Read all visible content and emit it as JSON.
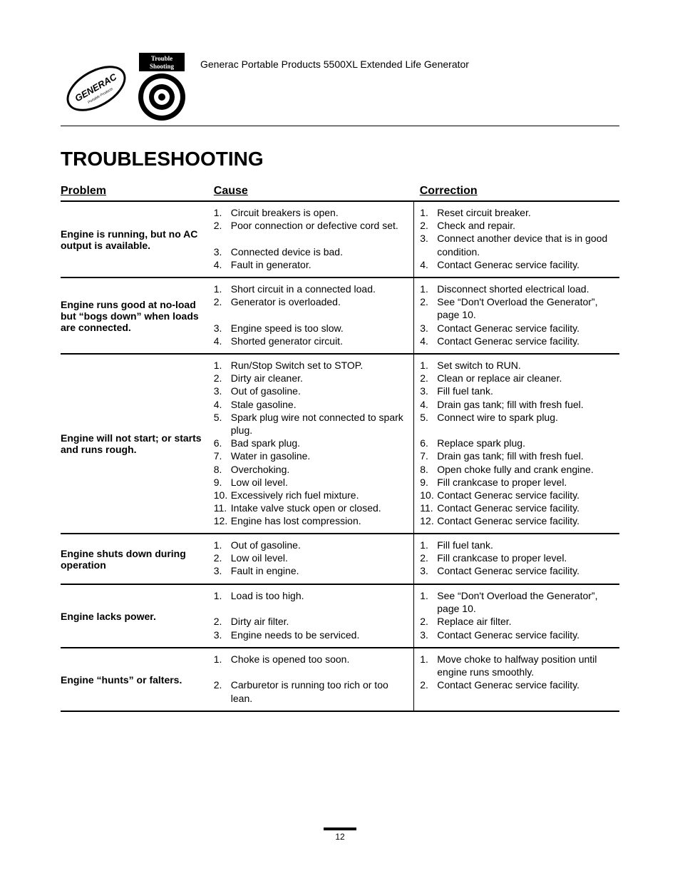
{
  "header": {
    "doc_title": "Generac Portable Products 5500XL Extended Life Generator",
    "badge_line1": "Trouble",
    "badge_line2": "Shooting",
    "logo_text": "GENERAC"
  },
  "section_title": "TROUBLESHOOTING",
  "columns": {
    "problem": "Problem",
    "cause": "Cause",
    "correction": "Correction"
  },
  "rows": [
    {
      "problem": "Engine is running, but no AC output is available.",
      "cause": [
        "Circuit breakers is open.",
        "Poor connection or defective cord set.",
        "Connected device is bad.",
        "Fault in generator."
      ],
      "correction": [
        "Reset circuit breaker.",
        "Check and repair.",
        "Connect another device that is in good condition.",
        "Contact Generac service facility."
      ],
      "spacer_after_cause": [
        1
      ],
      "spacer_after_correction": []
    },
    {
      "problem": "Engine runs good at no-load but “bogs down” when loads are connected.",
      "cause": [
        "Short circuit in a connected load.",
        "Generator is overloaded.",
        "Engine speed is too slow.",
        "Shorted generator circuit."
      ],
      "correction": [
        "Disconnect shorted electrical load.",
        "See “Don't Overload the Generator”, page 10.",
        "Contact Generac service facility.",
        "Contact Generac service facility."
      ],
      "spacer_after_cause": [
        1
      ],
      "spacer_after_correction": []
    },
    {
      "problem": "Engine will not start; or starts and runs rough.",
      "cause": [
        "Run/Stop Switch set to STOP.",
        "Dirty air cleaner.",
        "Out of gasoline.",
        "Stale gasoline.",
        "Spark plug wire not connected to spark plug.",
        "Bad spark plug.",
        "Water in gasoline.",
        "Overchoking.",
        "Low oil level.",
        "Excessively rich fuel mixture.",
        "Intake valve stuck open or closed.",
        "Engine has lost compression."
      ],
      "correction": [
        "Set switch to RUN.",
        "Clean or replace air cleaner.",
        "Fill fuel tank.",
        "Drain gas tank; fill with fresh fuel.",
        "Connect wire to spark plug.",
        "Replace spark plug.",
        "Drain gas tank; fill with fresh fuel.",
        "Open choke fully and crank engine.",
        "Fill crankcase to proper level.",
        "Contact Generac service facility.",
        "Contact Generac service facility.",
        "Contact Generac service facility."
      ],
      "spacer_after_cause": [],
      "spacer_after_correction": [
        4
      ]
    },
    {
      "problem": "Engine shuts down during operation",
      "cause": [
        "Out of gasoline.",
        "Low oil level.",
        "Fault in engine."
      ],
      "correction": [
        "Fill fuel tank.",
        "Fill crankcase to proper level.",
        "Contact Generac service facility."
      ],
      "spacer_after_cause": [],
      "spacer_after_correction": []
    },
    {
      "problem": "Engine lacks power.",
      "cause": [
        "Load is too high.",
        "Dirty air filter.",
        "Engine needs to be serviced."
      ],
      "correction": [
        "See “Don't Overload the Generator”, page 10.",
        "Replace air filter.",
        "Contact Generac service facility."
      ],
      "spacer_after_cause": [
        0
      ],
      "spacer_after_correction": []
    },
    {
      "problem": "Engine “hunts” or falters.",
      "cause": [
        "Choke is opened too soon.",
        "Carburetor is running too rich or too lean."
      ],
      "correction": [
        "Move choke to halfway position until engine runs smoothly.",
        "Contact Generac service facility."
      ],
      "spacer_after_cause": [
        0
      ],
      "spacer_after_correction": []
    }
  ],
  "page_number": "12"
}
